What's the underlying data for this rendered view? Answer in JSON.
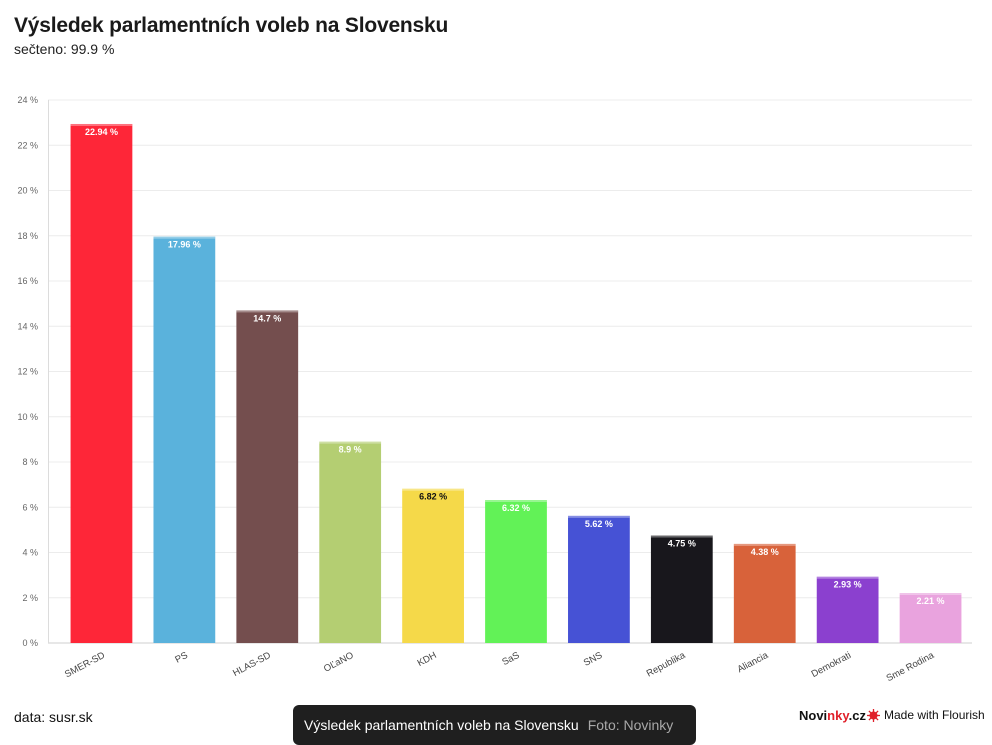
{
  "header": {
    "title": "Výsledek parlamentních voleb na Slovensku",
    "subtitle": "sečteno: 99.9 %"
  },
  "footer": {
    "source": "data: susr.sk",
    "caption_title": "Výsledek parlamentních voleb na Slovensku",
    "caption_credit": "Foto: Novinky",
    "brand_part1": "Novi",
    "brand_part2": "nky",
    "brand_part3": ".cz",
    "flourish": "Made with Flourish"
  },
  "chart_data": {
    "type": "bar",
    "title": "Výsledek parlamentních voleb na Slovensku",
    "subtitle": "sečteno: 99.9 %",
    "xlabel": "",
    "ylabel": "",
    "ylim": [
      0,
      24
    ],
    "yticks": [
      "0 %",
      "2 %",
      "4 %",
      "6 %",
      "8 %",
      "10 %",
      "12 %",
      "14 %",
      "16 %",
      "18 %",
      "20 %",
      "22 %",
      "24 %"
    ],
    "grid": true,
    "categories": [
      "SMER-SD",
      "PS",
      "HLAS-SD",
      "OĽaNO",
      "KDH",
      "SaS",
      "SNS",
      "Republika",
      "Aliancia",
      "Demokrati",
      "Sme Rodina"
    ],
    "values": [
      22.94,
      17.96,
      14.7,
      8.9,
      6.82,
      6.32,
      5.62,
      4.75,
      4.38,
      2.93,
      2.21
    ],
    "labels": [
      "22.94 %",
      "17.96 %",
      "14.7 %",
      "8.9 %",
      "6.82 %",
      "6.32 %",
      "5.62 %",
      "4.75 %",
      "4.38 %",
      "2.93 %",
      "2.21 %"
    ],
    "colors": [
      "#fe2638",
      "#5ab2dc",
      "#744e4e",
      "#b4ce72",
      "#f5d949",
      "#62f257",
      "#4652d5",
      "#18171c",
      "#d8623a",
      "#8b40cf",
      "#e9a3de"
    ],
    "label_colors": [
      "#ffffff",
      "#ffffff",
      "#ffffff",
      "#ffffff",
      "#111111",
      "#ffffff",
      "#ffffff",
      "#ffffff",
      "#ffffff",
      "#ffffff",
      "#ffffff"
    ]
  }
}
